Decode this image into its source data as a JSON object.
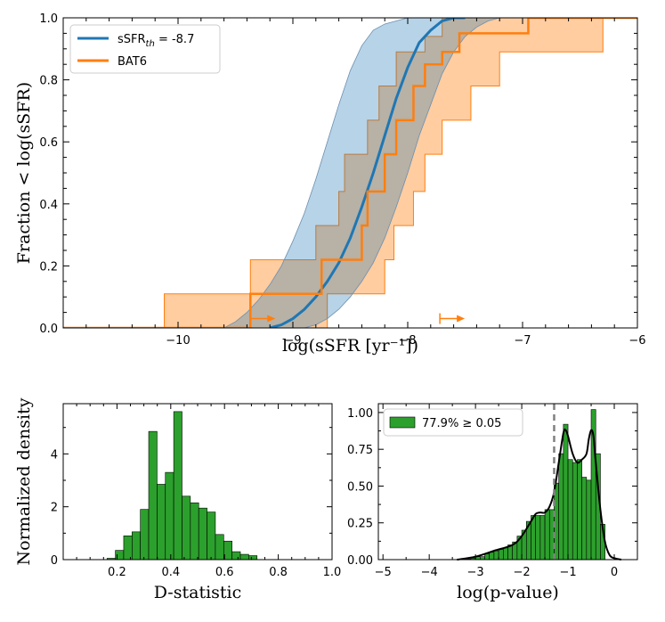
{
  "colors": {
    "blue": "#1f77b4",
    "blue_fill": "#a6c8e6",
    "orange": "#ff7f0e",
    "orange_fill": "#ffcda0",
    "overlap_fill": "#bda89a",
    "green": "#2ca02c",
    "kde": "#000000",
    "threshold": "#808080"
  },
  "chart_data": [
    {
      "type": "line",
      "id": "cdf",
      "xlabel": "log(sSFR [yr⁻¹])",
      "ylabel": "Fraction < log(sSFR)",
      "xlim": [
        -11,
        -6
      ],
      "ylim": [
        0,
        1
      ],
      "xticks": [
        -10,
        -9,
        -8,
        -7,
        -6
      ],
      "xtick_labels": [
        "−10",
        "−9",
        "−8",
        "−7",
        "−6"
      ],
      "yticks": [
        0,
        0.2,
        0.4,
        0.6,
        0.8,
        1.0
      ],
      "ytick_labels": [
        "0.0",
        "0.2",
        "0.4",
        "0.6",
        "0.8",
        "1.0"
      ],
      "legend": [
        "sSFR",
        "th",
        " = -8.7",
        "BAT6"
      ],
      "legend_position": "top-left",
      "series": [
        {
          "name": "sSFR_th = -8.7",
          "kind": "smooth-cdf",
          "x": [
            -9.2,
            -9.1,
            -9.0,
            -8.9,
            -8.8,
            -8.7,
            -8.6,
            -8.5,
            -8.4,
            -8.3,
            -8.2,
            -8.1,
            -8.0,
            -7.9,
            -7.8,
            -7.7,
            -7.6,
            -7.5
          ],
          "y": [
            0.0,
            0.01,
            0.03,
            0.06,
            0.1,
            0.15,
            0.21,
            0.29,
            0.39,
            0.5,
            0.62,
            0.74,
            0.84,
            0.92,
            0.96,
            0.99,
            1.0,
            1.0
          ],
          "band_lower_x": [
            -8.9,
            -8.8,
            -8.7,
            -8.6,
            -8.5,
            -8.4,
            -8.3,
            -8.2,
            -8.1,
            -8.0,
            -7.9,
            -7.8,
            -7.7,
            -7.6,
            -7.5,
            -7.4,
            -7.3,
            -7.2
          ],
          "band_lower_y": [
            0.0,
            0.01,
            0.03,
            0.06,
            0.1,
            0.15,
            0.21,
            0.29,
            0.39,
            0.5,
            0.62,
            0.72,
            0.82,
            0.89,
            0.94,
            0.97,
            0.99,
            1.0
          ],
          "band_upper_x": [
            -9.6,
            -9.5,
            -9.4,
            -9.3,
            -9.2,
            -9.1,
            -9.0,
            -8.9,
            -8.8,
            -8.7,
            -8.6,
            -8.5,
            -8.4,
            -8.3,
            -8.2,
            -8.1,
            -8.0,
            -7.9
          ],
          "band_upper_y": [
            0.0,
            0.02,
            0.05,
            0.09,
            0.14,
            0.2,
            0.28,
            0.37,
            0.48,
            0.6,
            0.72,
            0.83,
            0.91,
            0.96,
            0.98,
            0.99,
            1.0,
            1.0
          ]
        },
        {
          "name": "BAT6",
          "kind": "step-cdf",
          "x": [
            -11.0,
            -9.37,
            -8.75,
            -8.4,
            -8.35,
            -8.2,
            -8.1,
            -7.95,
            -7.85,
            -7.7,
            -7.55,
            -7.35,
            -6.95,
            -6.0
          ],
          "y": [
            0.0,
            0.11,
            0.22,
            0.33,
            0.44,
            0.56,
            0.67,
            0.78,
            0.85,
            0.89,
            0.95,
            0.95,
            1.0,
            1.0
          ],
          "band_upper_x": [
            -11.0,
            -10.12,
            -9.37,
            -8.8,
            -8.6,
            -8.55,
            -8.35,
            -8.25,
            -8.1,
            -8.05,
            -7.85,
            -7.7,
            -7.6,
            -7.55,
            -6.0
          ],
          "band_upper_y": [
            0.0,
            0.11,
            0.22,
            0.33,
            0.44,
            0.56,
            0.67,
            0.78,
            0.89,
            0.89,
            0.94,
            1.0,
            1.0,
            1.0,
            1.0
          ],
          "band_lower_x": [
            -11.0,
            -8.75,
            -8.7,
            -8.2,
            -8.12,
            -7.95,
            -7.85,
            -7.7,
            -7.45,
            -7.35,
            -7.2,
            -6.95,
            -6.3,
            -6.0
          ],
          "band_lower_y": [
            0.0,
            0.0,
            0.11,
            0.22,
            0.33,
            0.44,
            0.56,
            0.67,
            0.78,
            0.78,
            0.89,
            0.89,
            1.0,
            1.0
          ]
        }
      ],
      "upper_limit_markers": [
        {
          "x": -9.37,
          "y": 0.03
        },
        {
          "x": -7.72,
          "y": 0.03
        }
      ]
    },
    {
      "type": "bar",
      "id": "dstat",
      "xlabel": "D-statistic",
      "ylabel": "Normalized density",
      "xlim": [
        0.0,
        1.0
      ],
      "ylim": [
        0,
        5.9
      ],
      "xticks": [
        0.2,
        0.4,
        0.6,
        0.8,
        1.0
      ],
      "xtick_labels": [
        "0.2",
        "0.4",
        "0.6",
        "0.8",
        "1.0"
      ],
      "yticks": [
        0,
        2,
        4
      ],
      "ytick_labels": [
        "0",
        "2",
        "4"
      ],
      "bin_edges": [
        0.163,
        0.194,
        0.225,
        0.256,
        0.287,
        0.318,
        0.349,
        0.38,
        0.411,
        0.442,
        0.473,
        0.504,
        0.535,
        0.566,
        0.597,
        0.628,
        0.659,
        0.69,
        0.721
      ],
      "values": [
        0.05,
        0.35,
        0.9,
        1.05,
        1.9,
        4.85,
        2.85,
        3.3,
        5.6,
        2.4,
        2.15,
        1.95,
        1.8,
        0.95,
        0.7,
        0.3,
        0.2,
        0.15
      ]
    },
    {
      "type": "bar",
      "id": "pvalue",
      "xlabel": "log(p-value)",
      "ylabel": "",
      "xlim": [
        -5.1,
        0.5
      ],
      "ylim": [
        0,
        1.06
      ],
      "xticks": [
        -5,
        -4,
        -3,
        -2,
        -1,
        0
      ],
      "xtick_labels": [
        "−5",
        "−4",
        "−3",
        "−2",
        "−1",
        "0"
      ],
      "yticks": [
        0,
        0.25,
        0.5,
        0.75,
        1.0
      ],
      "ytick_labels": [
        "0.00",
        "0.25",
        "0.50",
        "0.75",
        "1.00"
      ],
      "legend": [
        "77.9% ≥ 0.05"
      ],
      "legend_position": "top-left",
      "threshold_x": -1.3,
      "bin_edges": [
        -3.3,
        -3.2,
        -3.1,
        -3.0,
        -2.9,
        -2.8,
        -2.7,
        -2.6,
        -2.5,
        -2.4,
        -2.3,
        -2.2,
        -2.1,
        -2.0,
        -1.9,
        -1.8,
        -1.7,
        -1.6,
        -1.5,
        -1.4,
        -1.3,
        -1.2,
        -1.1,
        -1.0,
        -0.9,
        -0.8,
        -0.7,
        -0.6,
        -0.5,
        -0.4,
        -0.3,
        -0.2
      ],
      "values": [
        0.005,
        0.005,
        0.01,
        0.02,
        0.02,
        0.04,
        0.05,
        0.06,
        0.07,
        0.08,
        0.1,
        0.12,
        0.16,
        0.2,
        0.26,
        0.3,
        0.3,
        0.3,
        0.34,
        0.34,
        0.52,
        0.72,
        0.92,
        0.68,
        0.66,
        0.68,
        0.56,
        0.54,
        1.02,
        0.72,
        0.24,
        0.02
      ],
      "kde_x": [
        -3.4,
        -3.0,
        -2.6,
        -2.2,
        -2.0,
        -1.8,
        -1.7,
        -1.6,
        -1.5,
        -1.4,
        -1.3,
        -1.2,
        -1.1,
        -1.05,
        -1.0,
        -0.9,
        -0.8,
        -0.7,
        -0.6,
        -0.55,
        -0.5,
        -0.45,
        -0.4,
        -0.3,
        -0.2,
        -0.1,
        0.0,
        0.15
      ],
      "kde_y": [
        0.0,
        0.02,
        0.06,
        0.1,
        0.16,
        0.26,
        0.31,
        0.32,
        0.32,
        0.36,
        0.46,
        0.66,
        0.86,
        0.88,
        0.84,
        0.72,
        0.66,
        0.68,
        0.72,
        0.82,
        0.88,
        0.84,
        0.66,
        0.34,
        0.12,
        0.03,
        0.01,
        0.0
      ]
    }
  ]
}
